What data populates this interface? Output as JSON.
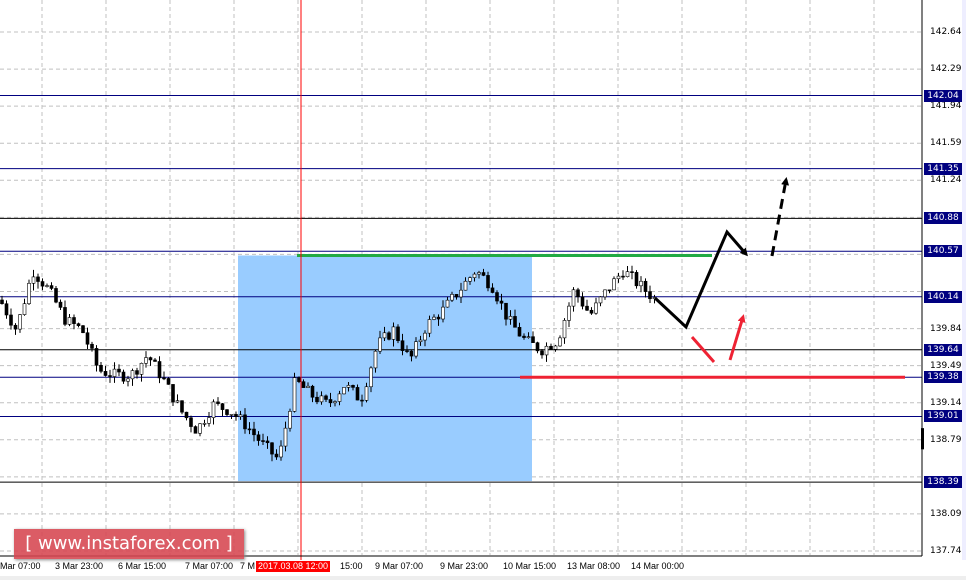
{
  "chart_data": {
    "type": "candlestick",
    "symbol_hint": "",
    "y_range": [
      137.74,
      142.64
    ],
    "y_ticks": [
      "142.64",
      "142.29",
      "141.94",
      "141.59",
      "141.24",
      "140.89",
      "140.54",
      "140.19",
      "139.84",
      "139.49",
      "139.14",
      "138.79",
      "138.44",
      "138.09",
      "137.74"
    ],
    "visible_y_ticks": [
      "142.64",
      "142.29",
      "141.94",
      "141.59",
      "141.24",
      "139.84",
      "139.49",
      "139.14",
      "138.79",
      "138.09",
      "137.74"
    ],
    "level_labels": [
      {
        "value": "142.04",
        "color": "#000080"
      },
      {
        "value": "141.35",
        "color": "#000080"
      },
      {
        "value": "140.88",
        "color": "#000000"
      },
      {
        "value": "140.57",
        "color": "#000080"
      },
      {
        "value": "140.14",
        "color": "#000080"
      },
      {
        "value": "139.64",
        "color": "#000000"
      },
      {
        "value": "139.38",
        "color": "#000080"
      },
      {
        "value": "139.01",
        "color": "#000080"
      },
      {
        "value": "138.39",
        "color": "#000000"
      }
    ],
    "x_labels": [
      "Mar 07:00",
      "3 Mar 23:00",
      "6 Mar 15:00",
      "7 Mar 07:00",
      "7 M",
      "15:00",
      "9 Mar 07:00",
      "9 Mar 23:00",
      "10 Mar 15:00",
      "13 Mar 08:00",
      "14 Mar 00:00"
    ],
    "crosshair_label": "2017.03.08 12:00",
    "approx_closes": [
      140.11,
      139.83,
      140.39,
      140.2,
      139.92,
      139.83,
      139.45,
      139.4,
      139.4,
      139.59,
      139.35,
      139.07,
      138.88,
      139.12,
      139.07,
      138.93,
      138.75,
      138.6,
      139.35,
      139.21,
      139.12,
      139.31,
      139.17,
      139.68,
      139.83,
      139.54,
      139.87,
      140.01,
      140.2,
      140.39,
      140.25,
      139.92,
      139.73,
      139.64,
      139.73,
      140.2,
      139.97,
      140.2,
      140.39,
      140.25,
      140.11
    ],
    "range_box": {
      "top": 140.53,
      "bottom": 138.4,
      "color": "#99ccff"
    },
    "resistance_line": {
      "value": 140.53,
      "color": "#22aa44"
    },
    "support_line": {
      "value": 139.38,
      "color": "#ee2233"
    },
    "grid": true,
    "colors": {
      "candle": "#000000",
      "crosshair": "#ff0000",
      "bull_arrow": "#000000",
      "bear_arrow": "#ee2233"
    }
  },
  "logo": {
    "text": "[ www.instaforex.com ]"
  }
}
